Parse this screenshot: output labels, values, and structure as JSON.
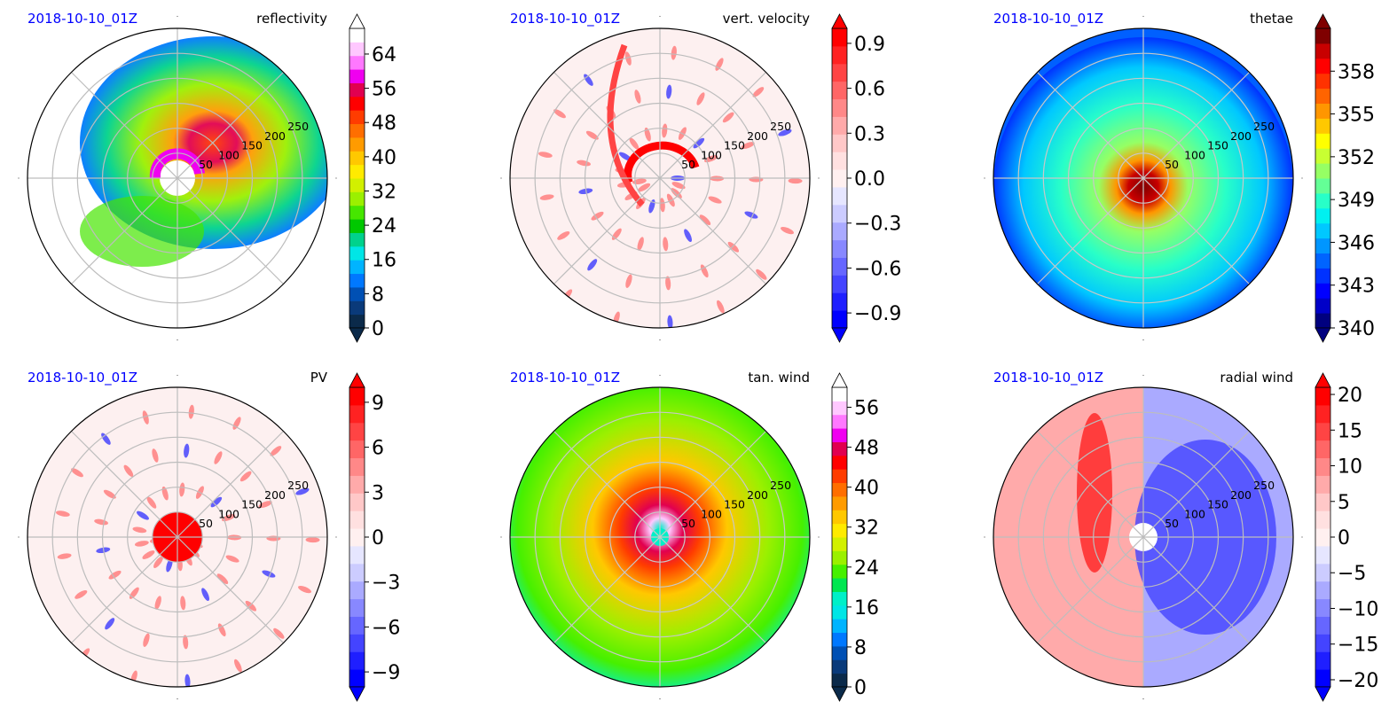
{
  "figure": {
    "date_label": "2018-10-10_01Z",
    "date_color": "#0000ff"
  },
  "chart_data": [
    {
      "type": "polar_contour",
      "title": "reflectivity",
      "radial_ticks": [
        "50",
        "100",
        "150",
        "200",
        "250"
      ],
      "rmax": 300,
      "colorbar": {
        "min": 0,
        "max": 70,
        "ticks": [
          0,
          8,
          16,
          24,
          32,
          40,
          48,
          56,
          64
        ],
        "tick_labels": [
          "0",
          "8",
          "16",
          "24",
          "32",
          "40",
          "48",
          "56",
          "64"
        ],
        "extend": "both",
        "colormap": "radar",
        "colors": [
          "#0b2a4a",
          "#0a3a7a",
          "#0050b4",
          "#0078ff",
          "#00b4ff",
          "#00e6e6",
          "#00d28c",
          "#00c800",
          "#46e600",
          "#9bf000",
          "#d2f000",
          "#ffeb00",
          "#ffc800",
          "#ff9b00",
          "#ff6e00",
          "#ff3c00",
          "#ff0000",
          "#e10050",
          "#f000f0",
          "#ff78ff",
          "#ffc8ff",
          "#ffffff"
        ]
      },
      "background": "white-with-storm-band"
    },
    {
      "type": "polar_contour",
      "title": "vert. velocity",
      "radial_ticks": [
        "50",
        "100",
        "150",
        "200",
        "250"
      ],
      "rmax": 300,
      "colorbar": {
        "min": -1.0,
        "max": 1.0,
        "ticks": [
          -0.9,
          -0.6,
          -0.3,
          0.0,
          0.3,
          0.6,
          0.9
        ],
        "tick_labels": [
          "−0.9",
          "−0.6",
          "−0.3",
          "0.0",
          "0.3",
          "0.6",
          "0.9"
        ],
        "extend": "both",
        "colormap": "bwr",
        "colors": [
          "#0000ff",
          "#1f1fff",
          "#4444ff",
          "#6666ff",
          "#8888ff",
          "#aaaaff",
          "#ccccff",
          "#e6e6ff",
          "#fff0f0",
          "#ffe0e0",
          "#ffc8c8",
          "#ffaaaa",
          "#ff8888",
          "#ff6666",
          "#ff4444",
          "#ff2222",
          "#ff0000"
        ]
      },
      "background": "#fdf0f0"
    },
    {
      "type": "polar_contour",
      "title": "thetae",
      "radial_ticks": [
        "50",
        "100",
        "150",
        "200",
        "250"
      ],
      "rmax": 300,
      "colorbar": {
        "min": 340,
        "max": 361,
        "ticks": [
          340,
          343,
          346,
          349,
          352,
          355,
          358
        ],
        "tick_labels": [
          "340",
          "343",
          "346",
          "349",
          "352",
          "355",
          "358"
        ],
        "extend": "both",
        "colormap": "jet",
        "colors": [
          "#00007f",
          "#0000c8",
          "#0000ff",
          "#0032ff",
          "#0064ff",
          "#0096ff",
          "#00c8ff",
          "#00f0f0",
          "#28ffc8",
          "#64ff96",
          "#96ff64",
          "#c8ff32",
          "#ffff00",
          "#ffc800",
          "#ff9600",
          "#ff6400",
          "#ff3200",
          "#ff0000",
          "#c80000",
          "#7f0000"
        ]
      },
      "background": "#0060ff"
    },
    {
      "type": "polar_contour",
      "title": "PV",
      "radial_ticks": [
        "50",
        "100",
        "150",
        "200",
        "250"
      ],
      "rmax": 300,
      "colorbar": {
        "min": -10,
        "max": 10,
        "ticks": [
          -9,
          -6,
          -3,
          0,
          3,
          6,
          9
        ],
        "tick_labels": [
          "−9",
          "−6",
          "−3",
          "0",
          "3",
          "6",
          "9"
        ],
        "extend": "both",
        "colormap": "bwr",
        "colors": [
          "#0000ff",
          "#1f1fff",
          "#4444ff",
          "#6666ff",
          "#8888ff",
          "#aaaaff",
          "#ccccff",
          "#e6e6ff",
          "#fff0f0",
          "#ffe0e0",
          "#ffc8c8",
          "#ffaaaa",
          "#ff8888",
          "#ff6666",
          "#ff4444",
          "#ff2222",
          "#ff0000"
        ]
      },
      "background": "#fdf0f0"
    },
    {
      "type": "polar_contour",
      "title": "tan. wind",
      "radial_ticks": [
        "50",
        "100",
        "150",
        "200",
        "250"
      ],
      "rmax": 300,
      "colorbar": {
        "min": 0,
        "max": 60,
        "ticks": [
          0,
          8,
          16,
          24,
          32,
          40,
          48,
          56
        ],
        "tick_labels": [
          "0",
          "8",
          "16",
          "24",
          "32",
          "40",
          "48",
          "56"
        ],
        "extend": "both",
        "colormap": "radar",
        "colors": [
          "#0b2a4a",
          "#0a3a7a",
          "#0050b4",
          "#0078ff",
          "#00b4ff",
          "#00e6e6",
          "#00f0c8",
          "#00e650",
          "#46f000",
          "#9bf000",
          "#d2f000",
          "#ffeb00",
          "#ffc800",
          "#ff9b00",
          "#ff6e00",
          "#ff3c00",
          "#ff0000",
          "#e10050",
          "#f000f0",
          "#ff78ff",
          "#ffc8ff",
          "#ffffff"
        ]
      },
      "background": "#3cf03c"
    },
    {
      "type": "polar_contour",
      "title": "radial wind",
      "radial_ticks": [
        "50",
        "100",
        "150",
        "200",
        "250"
      ],
      "rmax": 300,
      "colorbar": {
        "min": -21,
        "max": 21,
        "ticks": [
          -20,
          -15,
          -10,
          -5,
          0,
          5,
          10,
          15,
          20
        ],
        "tick_labels": [
          "−20",
          "−15",
          "−10",
          "−5",
          "0",
          "5",
          "10",
          "15",
          "20"
        ],
        "extend": "both",
        "colormap": "bwr",
        "colors": [
          "#0000ff",
          "#1f1fff",
          "#4444ff",
          "#6666ff",
          "#8888ff",
          "#aaaaff",
          "#ccccff",
          "#e6e6ff",
          "#fff0f0",
          "#ffe0e0",
          "#ffc8c8",
          "#ffaaaa",
          "#ff8888",
          "#ff6666",
          "#ff4444",
          "#ff2222",
          "#ff0000"
        ]
      },
      "background": "#ffd0d0"
    }
  ]
}
